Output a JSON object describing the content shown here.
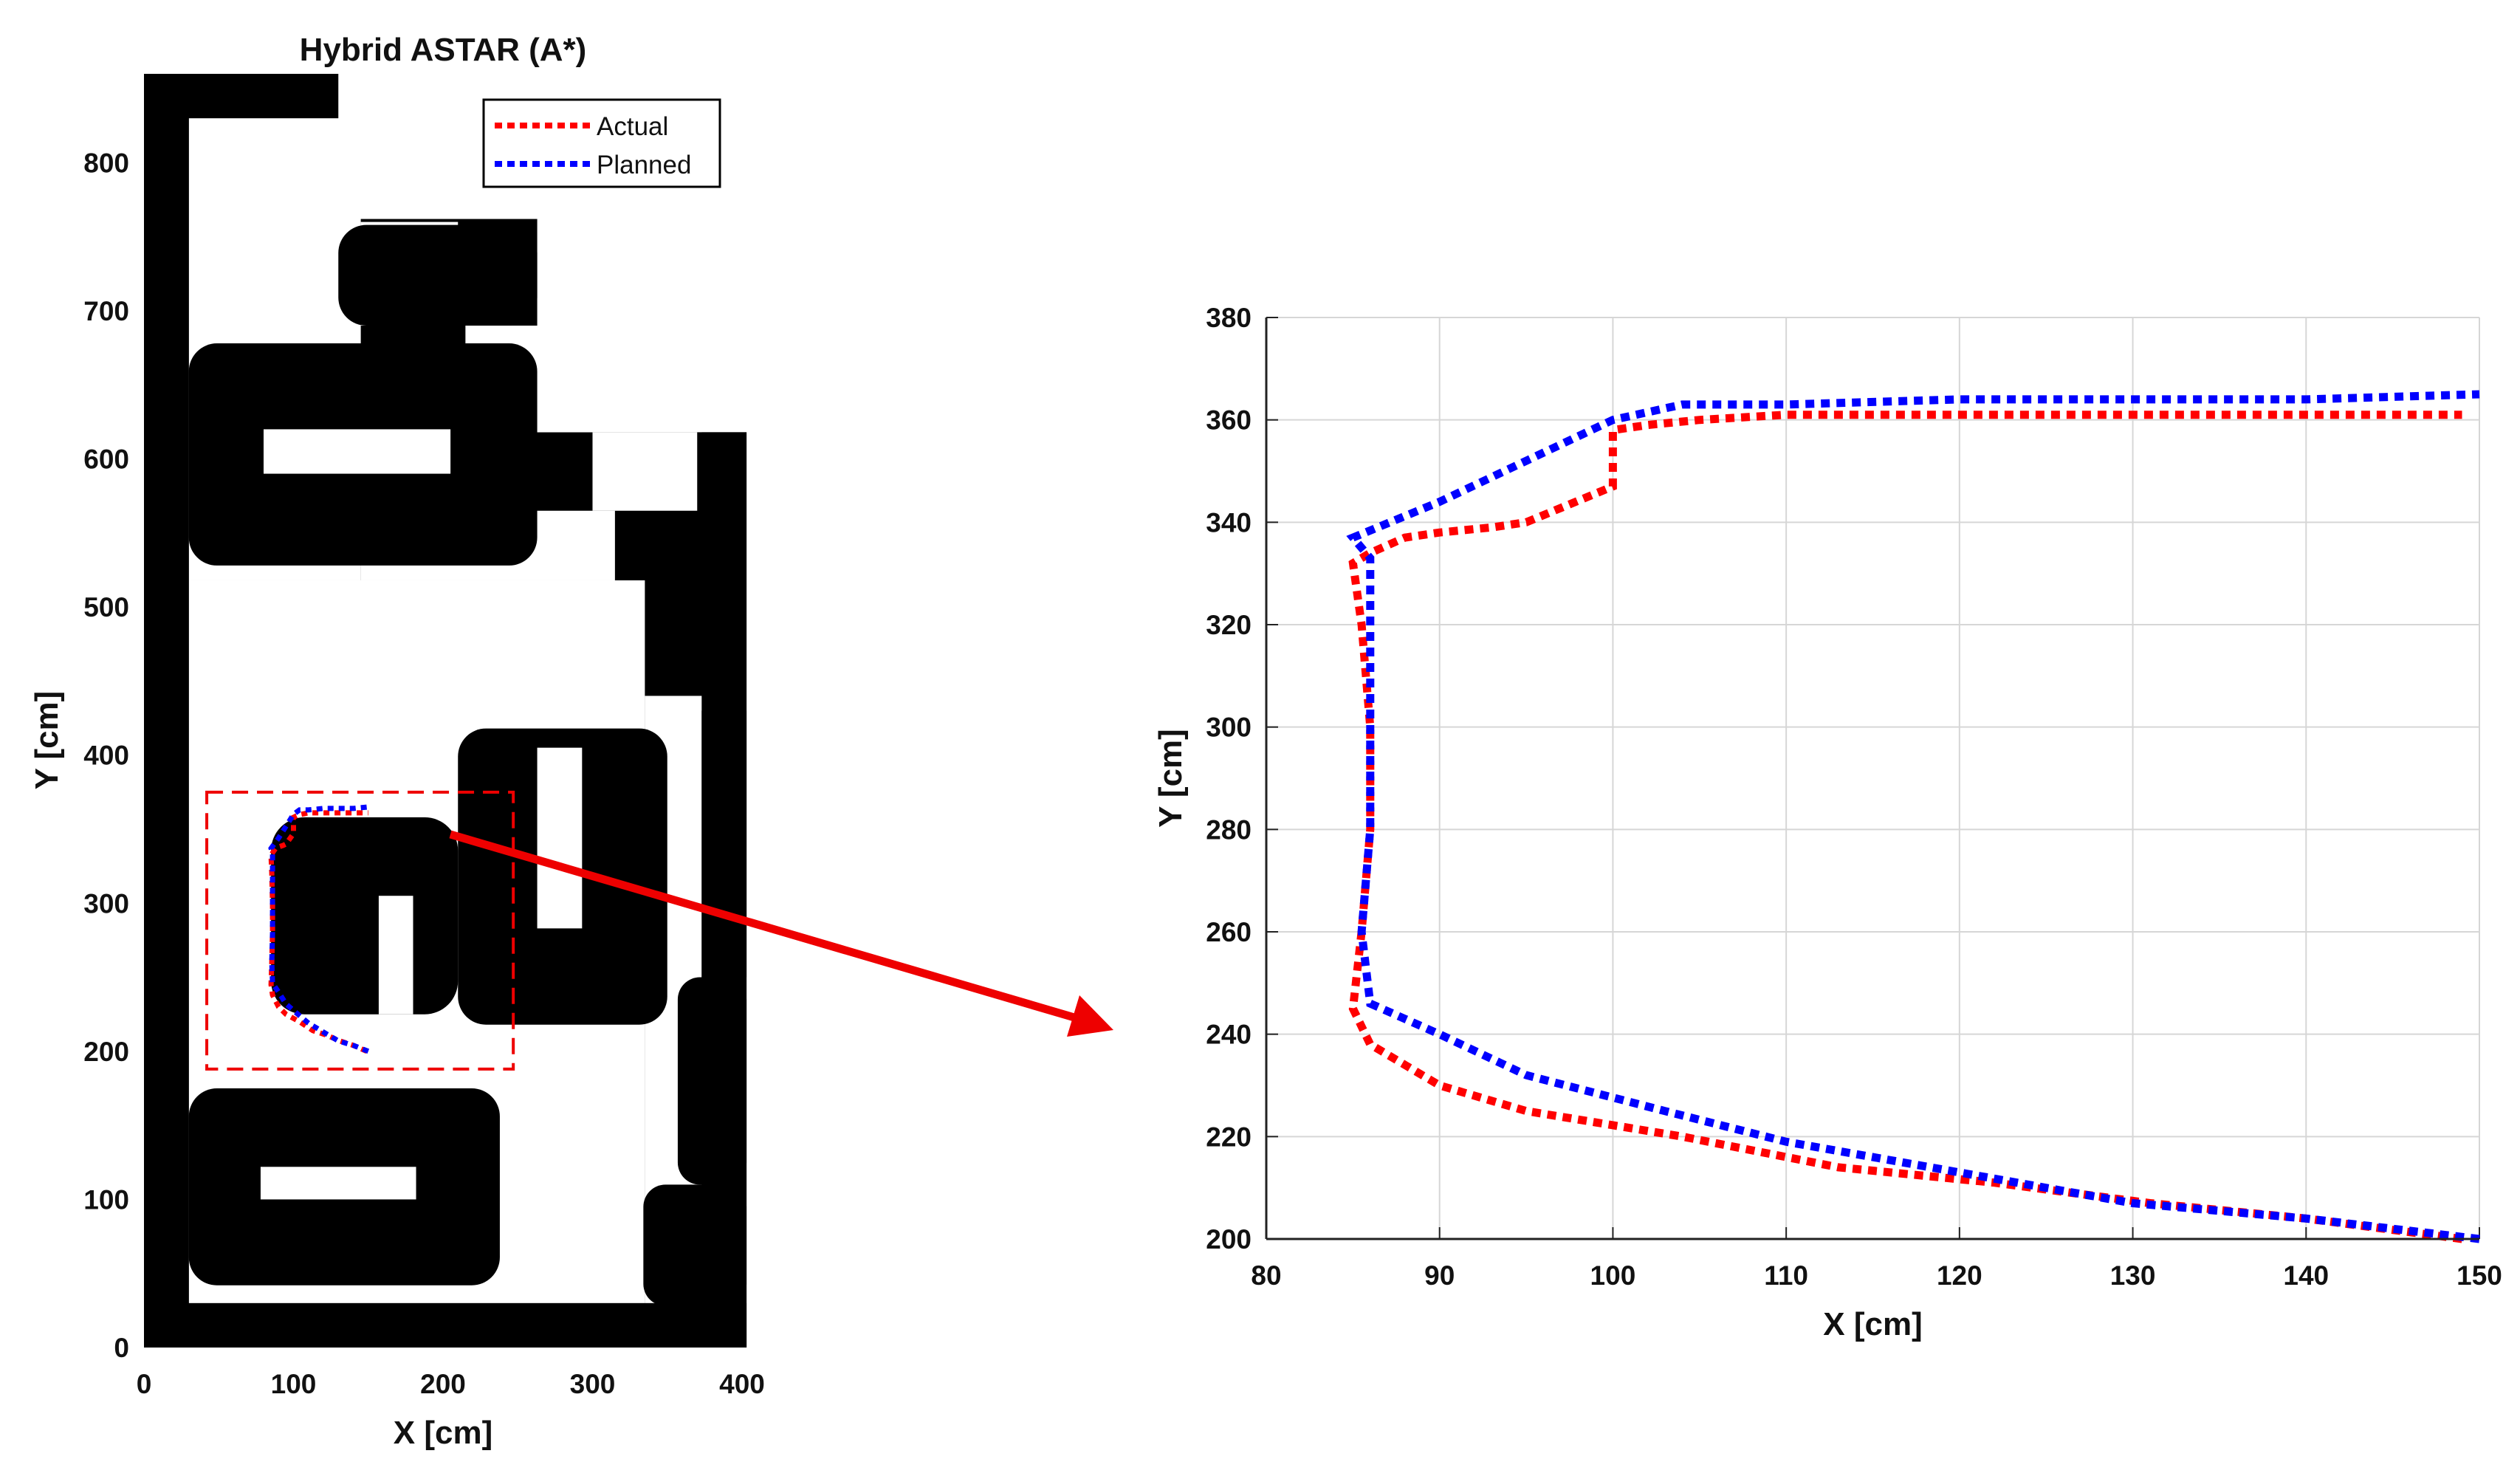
{
  "chart_data": [
    {
      "type": "line",
      "title": "Hybrid ASTAR (A*)",
      "xlabel": "X [cm]",
      "ylabel": "Y [cm]",
      "xlim": [
        0,
        400
      ],
      "ylim": [
        0,
        860
      ],
      "xticks": [
        "0",
        "100",
        "200",
        "300",
        "400"
      ],
      "yticks": [
        "0",
        "100",
        "200",
        "300",
        "400",
        "500",
        "600",
        "700",
        "800"
      ],
      "grid": false,
      "legend_position": "top-right",
      "background": "occupancy-map (black obstacles, white free space)",
      "series": [
        {
          "name": "Actual",
          "color": "#ff0000",
          "style": "dotted",
          "x": [
            149,
            140,
            131,
            122,
            113,
            104,
            95,
            90,
            86,
            85,
            85.5,
            86,
            86,
            85.5,
            85,
            86,
            88,
            90,
            93,
            95,
            100,
            100,
            102,
            105,
            110,
            150
          ],
          "y": [
            200,
            204,
            207,
            211,
            214,
            220,
            225,
            230,
            238,
            245,
            260,
            280,
            300,
            320,
            332,
            334,
            337,
            338,
            339,
            340,
            347,
            358,
            359,
            360,
            361,
            361
          ]
        },
        {
          "name": "Planned",
          "color": "#0000ff",
          "style": "dotted",
          "x": [
            150,
            140,
            130,
            120,
            110,
            103,
            95,
            90,
            86,
            85.5,
            86,
            86,
            86,
            86,
            85,
            90,
            95,
            100,
            104,
            110,
            120,
            140,
            150
          ],
          "y": [
            200,
            204,
            207,
            213,
            219,
            225,
            232,
            240,
            246,
            260,
            280,
            300,
            320,
            333,
            337,
            344,
            352,
            360,
            363,
            363,
            364,
            364,
            365
          ]
        }
      ],
      "zoom_box": {
        "x": [
          42,
          247
        ],
        "y": [
          188,
          375
        ]
      }
    },
    {
      "type": "line",
      "title": "",
      "xlabel": "X [cm]",
      "ylabel": "Y [cm]",
      "xlim": [
        80,
        150
      ],
      "ylim": [
        200,
        380
      ],
      "xticks": [
        "80",
        "90",
        "100",
        "110",
        "120",
        "130",
        "140",
        "150"
      ],
      "yticks": [
        "200",
        "220",
        "240",
        "260",
        "280",
        "300",
        "320",
        "340",
        "360",
        "380"
      ],
      "grid": true,
      "series": [
        {
          "name": "Actual",
          "color": "#ff0000",
          "style": "dotted",
          "x": [
            149,
            140,
            131,
            122,
            113,
            104,
            95,
            90,
            86,
            85,
            85.5,
            86,
            86,
            85.5,
            85,
            86,
            88,
            90,
            93,
            95,
            100,
            100,
            102,
            105,
            110,
            120,
            130,
            140,
            149
          ],
          "y": [
            200,
            204,
            207,
            211,
            214,
            220,
            225,
            230,
            238,
            245,
            260,
            280,
            300,
            320,
            332,
            334,
            337,
            338,
            339,
            340,
            347,
            358,
            359,
            360,
            361,
            361,
            361,
            361,
            361
          ]
        },
        {
          "name": "Planned",
          "color": "#0000ff",
          "style": "dotted",
          "x": [
            150,
            140,
            130,
            120,
            110,
            103,
            95,
            90,
            86,
            85.5,
            86,
            86,
            86,
            86,
            85,
            90,
            95,
            100,
            104,
            110,
            120,
            130,
            140,
            150
          ],
          "y": [
            200,
            204,
            207,
            213,
            219,
            225,
            232,
            240,
            246,
            260,
            280,
            300,
            320,
            333,
            337,
            344,
            352,
            360,
            363,
            363,
            364,
            364,
            364,
            365
          ]
        }
      ]
    }
  ]
}
